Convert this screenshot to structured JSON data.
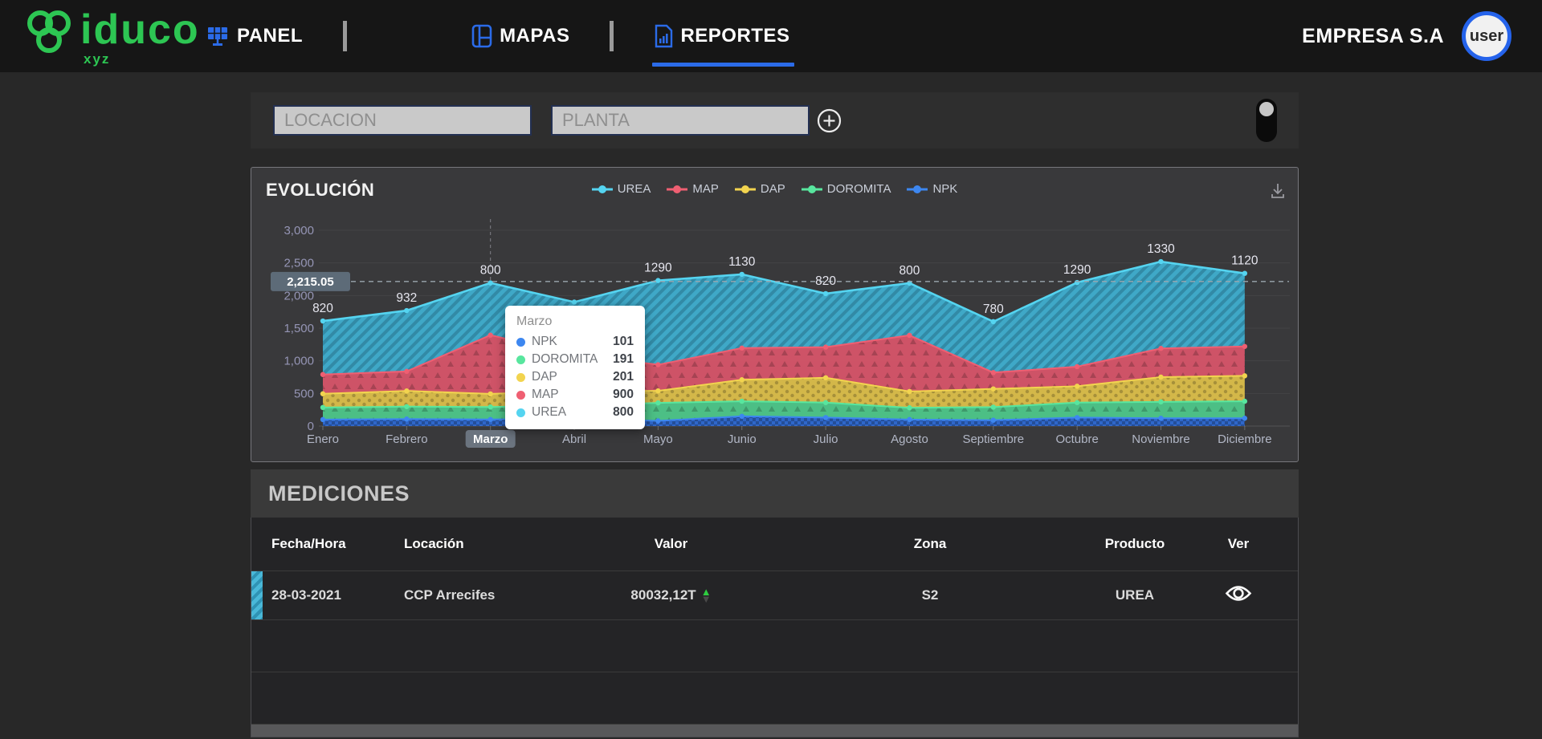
{
  "nav": {
    "brand": {
      "name": "iduco",
      "tagline": "xyz",
      "color": "#2dc653"
    },
    "items": [
      {
        "id": "panel",
        "label": "PANEL",
        "active": false
      },
      {
        "id": "mapas",
        "label": "MAPAS",
        "active": false
      },
      {
        "id": "reportes",
        "label": "REPORTES",
        "active": true
      }
    ],
    "accent": "#2b6be8",
    "company": "EMPRESA S.A",
    "avatar_label": "user"
  },
  "filters": {
    "location": {
      "placeholder": "LOCACION",
      "value": ""
    },
    "plant": {
      "placeholder": "PLANTA",
      "value": ""
    },
    "toggle_state": "off"
  },
  "evolution": {
    "title": "EVOLUCIÓN",
    "threshold": {
      "label": "2,215.05",
      "value": 2215.05
    },
    "selected_month": "Marzo",
    "tooltip": {
      "title": "Marzo",
      "rows": [
        {
          "name": "NPK",
          "value": "101",
          "color": "#3d87f0"
        },
        {
          "name": "DOROMITA",
          "value": "191",
          "color": "#58e69e"
        },
        {
          "name": "DAP",
          "value": "201",
          "color": "#f2d44f"
        },
        {
          "name": "MAP",
          "value": "900",
          "color": "#ef5f72"
        },
        {
          "name": "UREA",
          "value": "800",
          "color": "#55d4f0"
        }
      ]
    }
  },
  "chart_data": {
    "type": "area",
    "stacked": true,
    "title": "EVOLUCIÓN",
    "categories": [
      "Enero",
      "Febrero",
      "Marzo",
      "Abril",
      "Mayo",
      "Junio",
      "Julio",
      "Agosto",
      "Septiembre",
      "Octubre",
      "Noviembre",
      "Diciembre"
    ],
    "series": [
      {
        "name": "NPK",
        "fill": "#2e6bd4",
        "line": "#3d87f0",
        "pattern": "check",
        "values": [
          100,
          108,
          101,
          115,
          80,
          150,
          130,
          100,
          90,
          130,
          120,
          120
        ]
      },
      {
        "name": "DOROMITA",
        "fill": "#4dc98b",
        "line": "#58e69e",
        "pattern": "tri",
        "values": [
          185,
          190,
          191,
          200,
          275,
          230,
          230,
          180,
          200,
          230,
          250,
          260
        ]
      },
      {
        "name": "DAP",
        "fill": "#dfc14a",
        "line": "#f2d44f",
        "pattern": "dot",
        "values": [
          210,
          240,
          201,
          225,
          185,
          330,
          380,
          250,
          280,
          250,
          380,
          390
        ]
      },
      {
        "name": "MAP",
        "fill": "#d9556a",
        "line": "#ef5f72",
        "pattern": "tri",
        "values": [
          295,
          300,
          900,
          560,
          400,
          485,
          470,
          860,
          250,
          300,
          440,
          450
        ]
      },
      {
        "name": "UREA",
        "fill": "#3fb0d2",
        "line": "#55d4f0",
        "pattern": "hatch",
        "values": [
          820,
          932,
          800,
          800,
          1290,
          1130,
          820,
          800,
          780,
          1290,
          1330,
          1120
        ]
      }
    ],
    "point_labels": [
      "820",
      "932",
      "800",
      null,
      "1290",
      "1130",
      "820",
      "800",
      "780",
      "1290",
      "1330",
      "1120"
    ],
    "point_labels_series": "UREA",
    "ylim": [
      0,
      3000
    ],
    "yticks": [
      0,
      500,
      1000,
      1500,
      2000,
      2500,
      3000
    ],
    "legend": {
      "position": "top",
      "order": [
        "UREA",
        "MAP",
        "DAP",
        "DOROMITA",
        "NPK"
      ]
    },
    "grid": true,
    "threshold_line": 2215.05,
    "crosshair_month": "Marzo"
  },
  "mediciones": {
    "title": "MEDICIONES",
    "columns": [
      "Fecha/Hora",
      "Locación",
      "Valor",
      "Zona",
      "Producto",
      "Ver"
    ],
    "rows": [
      {
        "fecha_hora": "28-03-2021",
        "locacion": "CCP Arrecifes",
        "valor": "80032,12T",
        "trend": "up",
        "zona": "S2",
        "producto": "UREA"
      }
    ]
  }
}
